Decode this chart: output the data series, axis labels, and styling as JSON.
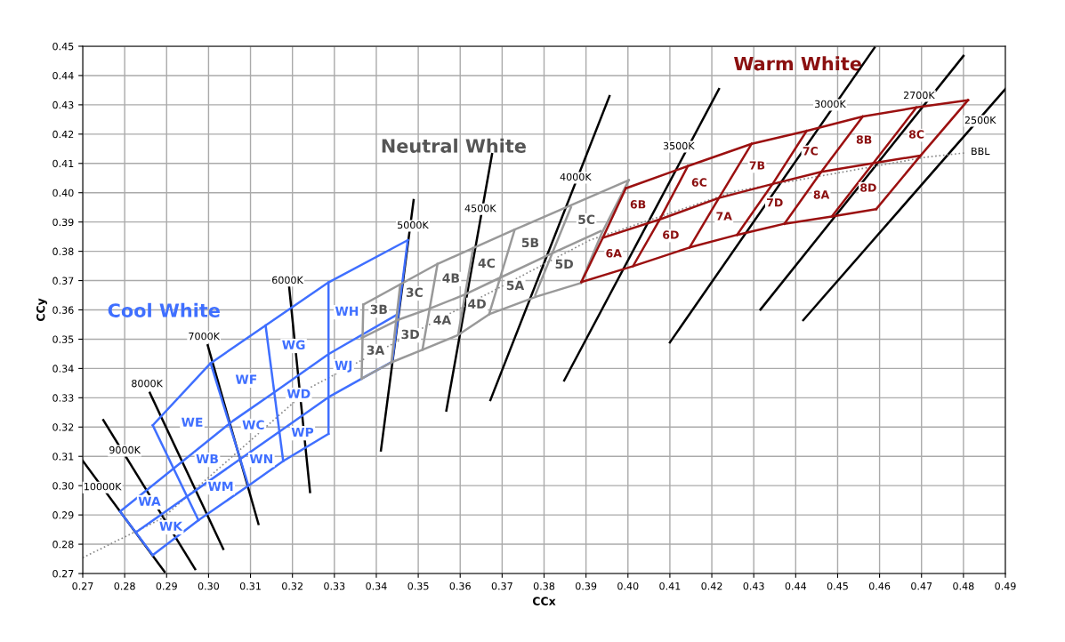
{
  "chart_data": {
    "type": "line",
    "xlabel": "CCx",
    "ylabel": "CCy",
    "xlim": [
      0.27,
      0.49
    ],
    "ylim": [
      0.27,
      0.45
    ],
    "xticks": [
      0.27,
      0.28,
      0.29,
      {
        "value": 0.3,
        "label": "0.30"
      },
      0.31,
      0.32,
      0.33,
      0.34,
      0.35,
      0.36,
      0.37,
      0.38,
      0.39,
      {
        "value": 0.4,
        "label": "0.40"
      },
      0.41,
      0.42,
      0.43,
      0.44,
      0.45,
      0.46,
      0.47,
      0.48,
      0.49
    ],
    "yticks": [
      0.27,
      0.28,
      0.29,
      {
        "value": 0.3,
        "label": "0.30"
      },
      0.31,
      0.32,
      0.33,
      0.34,
      0.35,
      0.36,
      0.37,
      0.38,
      0.39,
      {
        "value": 0.4,
        "label": "0.40"
      },
      0.41,
      0.42,
      0.43,
      0.44,
      0.45
    ],
    "grid": true,
    "marker": "none",
    "series": [
      {
        "color": "#000000",
        "line_style": "solid",
        "x": [
          0.27,
          0.2895
        ],
        "values": [
          0.3085,
          0.2706
        ]
      },
      {
        "color": "#000000",
        "line_style": "solid",
        "x": [
          0.2749,
          0.2968
        ],
        "values": [
          0.3224,
          0.2715
        ]
      },
      {
        "color": "#000000",
        "line_style": "solid",
        "x": [
          0.286,
          0.3035
        ],
        "values": [
          0.3317,
          0.2784
        ]
      },
      {
        "color": "#000000",
        "line_style": "solid",
        "x": [
          0.2998,
          0.3119
        ],
        "values": [
          0.3479,
          0.2869
        ]
      },
      {
        "color": "#000000",
        "line_style": "solid",
        "x": [
          0.3192,
          0.3242
        ],
        "values": [
          0.3681,
          0.2978
        ]
      },
      {
        "color": "#000000",
        "line_style": "solid",
        "x": [
          0.3489,
          0.3411
        ],
        "values": [
          0.3975,
          0.312
        ]
      },
      {
        "color": "#000000",
        "line_style": "solid",
        "x": [
          0.3676,
          0.3567
        ],
        "values": [
          0.4132,
          0.3256
        ]
      },
      {
        "color": "#000000",
        "line_style": "solid",
        "x": [
          0.3956,
          0.3672
        ],
        "values": [
          0.433,
          0.3292
        ]
      },
      {
        "color": "#000000",
        "line_style": "solid",
        "x": [
          0.4217,
          0.3848
        ],
        "values": [
          0.4354,
          0.3359
        ]
      },
      {
        "color": "#000000",
        "line_style": "solid",
        "x": [
          0.4588,
          0.41
        ],
        "values": [
          0.4495,
          0.3489
        ]
      },
      {
        "color": "#000000",
        "line_style": "solid",
        "x": [
          0.48,
          0.4316
        ],
        "values": [
          0.4467,
          0.3601
        ]
      },
      {
        "color": "#000000",
        "line_style": "solid",
        "x": [
          0.49,
          0.4418
        ],
        "values": [
          0.4354,
          0.3565
        ]
      },
      {
        "color": "#888888",
        "line_style": "dotted",
        "x": [
          0.27,
          0.2889,
          0.3245,
          0.3599,
          0.3909,
          0.4256,
          0.4709,
          0.4804
        ],
        "values": [
          0.2754,
          0.2888,
          0.3337,
          0.3605,
          0.3838,
          0.4005,
          0.4121,
          0.4136
        ]
      },
      {
        "color": "#3f6fff",
        "line_style": "solid",
        "x": [
          0.2867,
          0.3005,
          0.3136,
          0.3286,
          0.3475
        ],
        "values": [
          0.3206,
          0.3418,
          0.3547,
          0.3694,
          0.3838
        ]
      },
      {
        "color": "#3f6fff",
        "line_style": "solid",
        "x": [
          0.2789,
          0.3058,
          0.3155,
          0.3286,
          0.3447
        ],
        "values": [
          0.2912,
          0.3221,
          0.3317,
          0.3449,
          0.3582
        ]
      },
      {
        "color": "#3f6fff",
        "line_style": "solid",
        "x": [
          0.2828,
          0.3286,
          0.3438
        ],
        "values": [
          0.2842,
          0.3302,
          0.3423
        ]
      },
      {
        "color": "#3f6fff",
        "line_style": "solid",
        "x": [
          0.2867,
          0.2976,
          0.3095,
          0.3178,
          0.3286
        ],
        "values": [
          0.2763,
          0.2882,
          0.3,
          0.3084,
          0.3177
        ]
      },
      {
        "color": "#3f6fff",
        "line_style": "solid",
        "x": [
          0.2789,
          0.2867
        ],
        "values": [
          0.2912,
          0.2763
        ]
      },
      {
        "color": "#3f6fff",
        "line_style": "solid",
        "x": [
          0.2867,
          0.2976
        ],
        "values": [
          0.3206,
          0.2882
        ]
      },
      {
        "color": "#3f6fff",
        "line_style": "solid",
        "x": [
          0.3005,
          0.3095
        ],
        "values": [
          0.3418,
          0.3
        ]
      },
      {
        "color": "#3f6fff",
        "line_style": "solid",
        "x": [
          0.3136,
          0.3178
        ],
        "values": [
          0.3547,
          0.3084
        ]
      },
      {
        "color": "#3f6fff",
        "line_style": "solid",
        "x": [
          0.3286,
          0.3286
        ],
        "values": [
          0.3694,
          0.3177
        ]
      },
      {
        "color": "#3f6fff",
        "line_style": "solid",
        "x": [
          0.3475,
          0.3438
        ],
        "values": [
          0.3838,
          0.3423
        ]
      },
      {
        "color": "#999999",
        "line_style": "solid",
        "x": [
          0.3369,
          0.3546,
          0.373,
          0.4002
        ],
        "values": [
          0.3618,
          0.3757,
          0.3874,
          0.4043
        ]
      },
      {
        "color": "#999999",
        "line_style": "solid",
        "x": [
          0.3365,
          0.345,
          0.3528,
          0.3609,
          0.3691,
          0.3811,
          0.3935
        ],
        "values": [
          0.3504,
          0.3565,
          0.3605,
          0.3651,
          0.3707,
          0.3788,
          0.3869
        ]
      },
      {
        "color": "#999999",
        "line_style": "solid",
        "x": [
          0.3365,
          0.3436,
          0.351,
          0.3595,
          0.3669,
          0.3783,
          0.3888
        ],
        "values": [
          0.3365,
          0.3421,
          0.3464,
          0.3514,
          0.3585,
          0.3646,
          0.3692
        ]
      },
      {
        "color": "#999999",
        "line_style": "solid",
        "x": [
          0.3369,
          0.3365
        ],
        "values": [
          0.3618,
          0.3365
        ]
      },
      {
        "color": "#999999",
        "line_style": "solid",
        "x": [
          0.3457,
          0.3436
        ],
        "values": [
          0.3686,
          0.3421
        ]
      },
      {
        "color": "#999999",
        "line_style": "solid",
        "x": [
          0.3546,
          0.351
        ],
        "values": [
          0.3757,
          0.3464
        ]
      },
      {
        "color": "#999999",
        "line_style": "solid",
        "x": [
          0.3631,
          0.3595
        ],
        "values": [
          0.3811,
          0.3514
        ]
      },
      {
        "color": "#999999",
        "line_style": "solid",
        "x": [
          0.373,
          0.3669
        ],
        "values": [
          0.3874,
          0.3585
        ]
      },
      {
        "color": "#999999",
        "line_style": "solid",
        "x": [
          0.3864,
          0.3779
        ],
        "values": [
          0.395,
          0.3651
        ]
      },
      {
        "color": "#999999",
        "line_style": "solid",
        "x": [
          0.4002,
          0.3938,
          0.3888
        ],
        "values": [
          0.4043,
          0.3863,
          0.3692
        ]
      },
      {
        "color": "#9b1010",
        "line_style": "solid",
        "x": [
          0.3995,
          0.4143,
          0.4295,
          0.4426,
          0.456,
          0.4688,
          0.4811
        ],
        "values": [
          0.4015,
          0.4091,
          0.4167,
          0.4211,
          0.426,
          0.4291,
          0.4316
        ]
      },
      {
        "color": "#9b1010",
        "line_style": "solid",
        "x": [
          0.394,
          0.4076,
          0.4217,
          0.4345,
          0.4461,
          0.4585,
          0.4698
        ],
        "values": [
          0.3846,
          0.3909,
          0.3982,
          0.403,
          0.4071,
          0.4101,
          0.4127
        ]
      },
      {
        "color": "#9b1010",
        "line_style": "solid",
        "x": [
          0.3889,
          0.4012,
          0.4147,
          0.426,
          0.4373,
          0.4486,
          0.4592
        ],
        "values": [
          0.3695,
          0.3749,
          0.3813,
          0.3856,
          0.3894,
          0.3919,
          0.3944
        ]
      },
      {
        "color": "#9b1010",
        "line_style": "solid",
        "x": [
          0.3995,
          0.394,
          0.3889
        ],
        "values": [
          0.4015,
          0.3846,
          0.3695
        ]
      },
      {
        "color": "#9b1010",
        "line_style": "solid",
        "x": [
          0.4143,
          0.4076,
          0.4012
        ],
        "values": [
          0.4091,
          0.3909,
          0.3749
        ]
      },
      {
        "color": "#9b1010",
        "line_style": "solid",
        "x": [
          0.4295,
          0.4217,
          0.4147
        ],
        "values": [
          0.4167,
          0.3982,
          0.3813
        ]
      },
      {
        "color": "#9b1010",
        "line_style": "solid",
        "x": [
          0.4426,
          0.4345,
          0.426
        ],
        "values": [
          0.4211,
          0.403,
          0.3856
        ]
      },
      {
        "color": "#9b1010",
        "line_style": "solid",
        "x": [
          0.456,
          0.4461,
          0.4373
        ],
        "values": [
          0.426,
          0.4071,
          0.3894
        ]
      },
      {
        "color": "#9b1010",
        "line_style": "solid",
        "x": [
          0.4688,
          0.4585,
          0.4486
        ],
        "values": [
          0.4291,
          0.4101,
          0.3919
        ]
      },
      {
        "color": "#9b1010",
        "line_style": "solid",
        "x": [
          0.4811,
          0.4698,
          0.4592
        ],
        "values": [
          0.4316,
          0.4127,
          0.3944
        ]
      }
    ],
    "annotations": [
      "Cool White",
      "Neutral White",
      "Warm White",
      {
        "text": "WA",
        "x": 0.2859,
        "y": 0.2943
      },
      {
        "text": "WK",
        "x": 0.291,
        "y": 0.2858
      },
      {
        "text": "WB",
        "x": 0.2997,
        "y": 0.3088
      },
      {
        "text": "WM",
        "x": 0.3029,
        "y": 0.2994
      },
      {
        "text": "WE",
        "x": 0.2961,
        "y": 0.3213
      },
      {
        "text": "WC",
        "x": 0.3107,
        "y": 0.3204
      },
      {
        "text": "WN",
        "x": 0.3126,
        "y": 0.3088
      },
      {
        "text": "WF",
        "x": 0.309,
        "y": 0.3359
      },
      {
        "text": "WD",
        "x": 0.3215,
        "y": 0.331
      },
      {
        "text": "WP",
        "x": 0.3224,
        "y": 0.3179
      },
      {
        "text": "WG",
        "x": 0.3203,
        "y": 0.3477
      },
      {
        "text": "WH",
        "x": 0.333,
        "y": 0.3592
      },
      {
        "text": "WJ",
        "x": 0.3322,
        "y": 0.3407
      },
      {
        "text": "3B",
        "x": 0.3406,
        "y": 0.3598
      },
      {
        "text": "3A",
        "x": 0.3398,
        "y": 0.3459
      },
      {
        "text": "3C",
        "x": 0.3491,
        "y": 0.3656
      },
      {
        "text": "3D",
        "x": 0.3481,
        "y": 0.3513
      },
      {
        "text": "4B",
        "x": 0.3578,
        "y": 0.3705
      },
      {
        "text": "4A",
        "x": 0.3557,
        "y": 0.3562
      },
      {
        "text": "4C",
        "x": 0.3663,
        "y": 0.3756
      },
      {
        "text": "4D",
        "x": 0.364,
        "y": 0.3617
      },
      {
        "text": "5B",
        "x": 0.3767,
        "y": 0.3826
      },
      {
        "text": "5A",
        "x": 0.3731,
        "y": 0.368
      },
      {
        "text": "5C",
        "x": 0.3901,
        "y": 0.3905
      },
      {
        "text": "5D",
        "x": 0.3848,
        "y": 0.3753
      },
      {
        "text": "6A",
        "x": 0.3966,
        "y": 0.379
      },
      {
        "text": "6B",
        "x": 0.4024,
        "y": 0.3957
      },
      {
        "text": "6D",
        "x": 0.4102,
        "y": 0.3853
      },
      {
        "text": "6C",
        "x": 0.417,
        "y": 0.4032
      },
      {
        "text": "7A",
        "x": 0.4229,
        "y": 0.3917
      },
      {
        "text": "7B",
        "x": 0.4308,
        "y": 0.409
      },
      {
        "text": "7D",
        "x": 0.435,
        "y": 0.3963
      },
      {
        "text": "7C",
        "x": 0.4435,
        "y": 0.4139
      },
      {
        "text": "8A",
        "x": 0.4461,
        "y": 0.399
      },
      {
        "text": "8B",
        "x": 0.4563,
        "y": 0.4178
      },
      {
        "text": "8D",
        "x": 0.4573,
        "y": 0.4014
      },
      {
        "text": "8C",
        "x": 0.4688,
        "y": 0.4196
      },
      {
        "text": "10000K",
        "x": 0.2747,
        "y": 0.2994
      },
      {
        "text": "9000K",
        "x": 0.28,
        "y": 0.3119
      },
      {
        "text": "8000K",
        "x": 0.2853,
        "y": 0.3346
      },
      {
        "text": "7000K",
        "x": 0.2989,
        "y": 0.3507
      },
      {
        "text": "6000K",
        "x": 0.3188,
        "y": 0.3699
      },
      {
        "text": "5000K",
        "x": 0.3487,
        "y": 0.3887
      },
      {
        "text": "4500K",
        "x": 0.3648,
        "y": 0.3944
      },
      {
        "text": "4000K",
        "x": 0.3875,
        "y": 0.4051
      },
      {
        "text": "3500K",
        "x": 0.4121,
        "y": 0.4157
      },
      {
        "text": "3000K",
        "x": 0.4482,
        "y": 0.43
      },
      {
        "text": "2700K",
        "x": 0.4694,
        "y": 0.433
      },
      {
        "text": "2500K",
        "x": 0.484,
        "y": 0.4245
      },
      {
        "text": "BBL",
        "x": 0.484,
        "y": 0.4139
      }
    ]
  }
}
